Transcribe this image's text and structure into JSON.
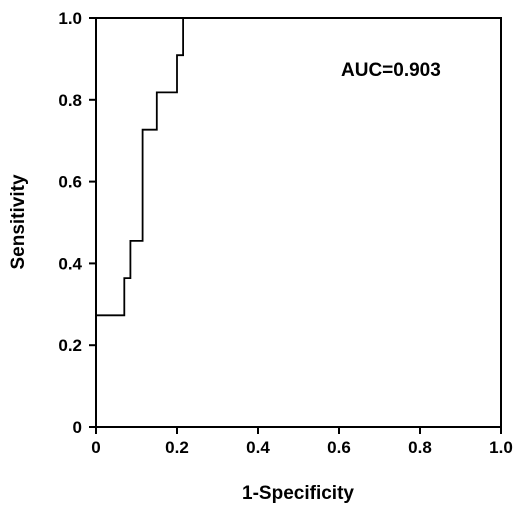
{
  "chart_data": {
    "type": "line",
    "title": "",
    "xlabel": "1-Specificity",
    "ylabel": "Sensitivity",
    "xlim": [
      0,
      1.0
    ],
    "ylim": [
      0,
      1.0
    ],
    "x_ticks": [
      {
        "value": 0,
        "label": "0"
      },
      {
        "value": 0.2,
        "label": "0.2"
      },
      {
        "value": 0.4,
        "label": "0.4"
      },
      {
        "value": 0.6,
        "label": "0.6"
      },
      {
        "value": 0.8,
        "label": "0.8"
      },
      {
        "value": 1.0,
        "label": "1.0"
      }
    ],
    "y_ticks": [
      {
        "value": 0,
        "label": "0"
      },
      {
        "value": 0.2,
        "label": "0.2"
      },
      {
        "value": 0.4,
        "label": "0.4"
      },
      {
        "value": 0.6,
        "label": "0.6"
      },
      {
        "value": 0.8,
        "label": "0.8"
      },
      {
        "value": 1.0,
        "label": "1.0"
      }
    ],
    "grid": false,
    "annotation": "AUC=0.903",
    "series": [
      {
        "color": "#000000",
        "points": [
          {
            "x": 0,
            "y": 0
          },
          {
            "x": 0,
            "y": 0.273
          },
          {
            "x": 0.07,
            "y": 0.273
          },
          {
            "x": 0.07,
            "y": 0.364
          },
          {
            "x": 0.085,
            "y": 0.364
          },
          {
            "x": 0.085,
            "y": 0.455
          },
          {
            "x": 0.115,
            "y": 0.455
          },
          {
            "x": 0.115,
            "y": 0.727
          },
          {
            "x": 0.15,
            "y": 0.727
          },
          {
            "x": 0.15,
            "y": 0.818
          },
          {
            "x": 0.2,
            "y": 0.818
          },
          {
            "x": 0.2,
            "y": 0.909
          },
          {
            "x": 0.215,
            "y": 0.909
          },
          {
            "x": 0.215,
            "y": 1.0
          },
          {
            "x": 1.0,
            "y": 1.0
          }
        ]
      }
    ]
  }
}
